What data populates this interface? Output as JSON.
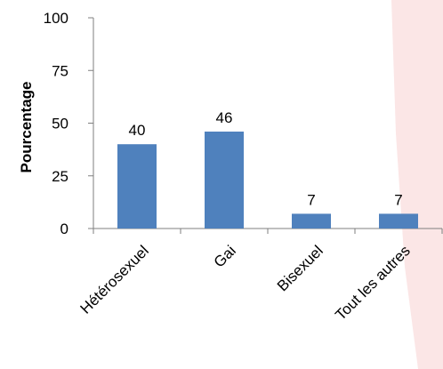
{
  "colors": {
    "bar": "#4f81bd",
    "axis": "#7f7f7f",
    "background": "#ffffff",
    "watermark": "#fbe6e6"
  },
  "chart_data": {
    "type": "bar",
    "ylabel": "Pourcentage",
    "ylim": [
      0,
      100
    ],
    "yticks": [
      0,
      25,
      50,
      75,
      100
    ],
    "categories": [
      "Hétérosexuel",
      "Gai",
      "Bisexuel",
      "Tout les autres"
    ],
    "values": [
      40,
      46,
      7,
      7
    ],
    "data_labels": [
      "40",
      "46",
      "7",
      "7"
    ],
    "grid": false,
    "legend": "none"
  }
}
